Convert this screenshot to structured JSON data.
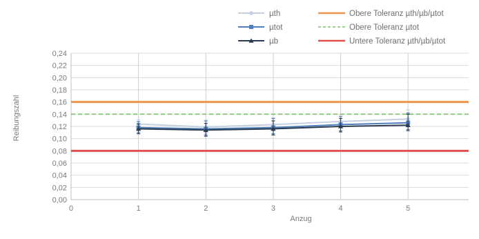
{
  "chart_data": {
    "type": "line",
    "title": "",
    "xlabel": "Anzug",
    "ylabel": "Reibungszahl",
    "xlim": [
      0,
      5.9
    ],
    "ylim": [
      0,
      0.24
    ],
    "x_ticks": [
      "0",
      "1",
      "2",
      "3",
      "4",
      "5"
    ],
    "y_ticks": [
      "0,00",
      "0,02",
      "0,04",
      "0,06",
      "0,08",
      "0,10",
      "0,12",
      "0,14",
      "0,16",
      "0,18",
      "0,20",
      "0,22",
      "0,24"
    ],
    "grid": true,
    "legend_position": "top-right",
    "x": [
      1,
      2,
      3,
      4,
      5
    ],
    "series": [
      {
        "name": "µth",
        "values": [
          0.124,
          0.119,
          0.123,
          0.128,
          0.132
        ],
        "err_low": [
          0.115,
          0.109,
          0.113,
          0.118,
          0.12
        ],
        "err_high": [
          0.131,
          0.13,
          0.134,
          0.138,
          0.147
        ],
        "color": "#c5cfe2",
        "marker": "circle"
      },
      {
        "name": "µtot",
        "values": [
          0.118,
          0.116,
          0.118,
          0.123,
          0.126
        ],
        "err_low": [
          0.11,
          0.106,
          0.108,
          0.113,
          0.115
        ],
        "err_high": [
          0.128,
          0.129,
          0.133,
          0.136,
          0.142
        ],
        "color": "#4f7fb8",
        "marker": "square"
      },
      {
        "name": "µb",
        "values": [
          0.116,
          0.114,
          0.116,
          0.12,
          0.122
        ],
        "err_low": [
          0.108,
          0.104,
          0.106,
          0.111,
          0.113
        ],
        "err_high": [
          0.124,
          0.125,
          0.129,
          0.133,
          0.14
        ],
        "color": "#2b3b52",
        "marker": "triangle"
      }
    ],
    "reference_lines": [
      {
        "name": "Obere Toleranz µth/µb/µtot",
        "value": 0.16,
        "color": "#f0954a",
        "style": "solid"
      },
      {
        "name": "Obere Toleranz µtot",
        "value": 0.14,
        "color": "#7cbf6a",
        "style": "dashed"
      },
      {
        "name": "Untere Toleranz µth/µb/µtot",
        "value": 0.08,
        "color": "#e0504c",
        "style": "solid"
      }
    ]
  }
}
